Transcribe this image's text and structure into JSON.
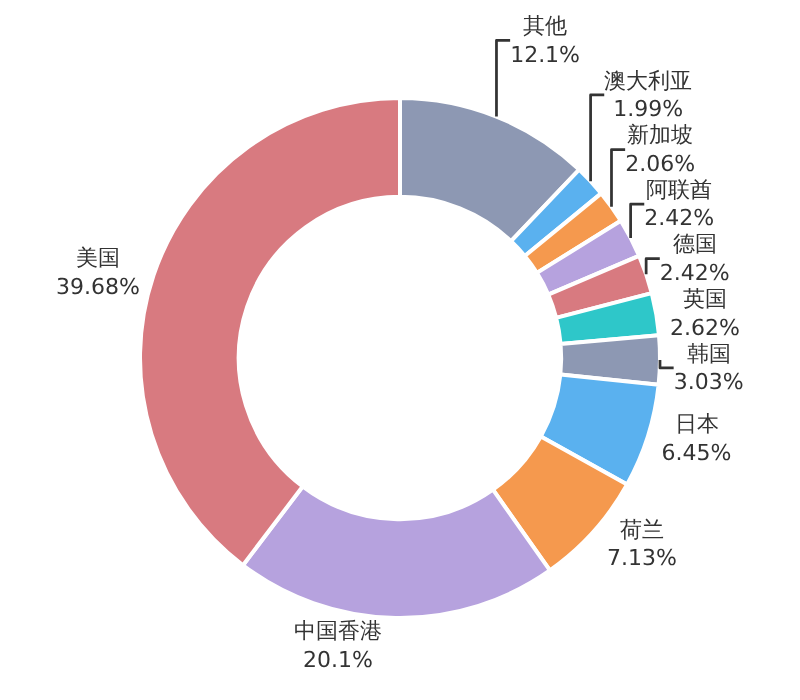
{
  "chart_data": {
    "type": "donut",
    "categories": [
      "其他",
      "澳大利亚",
      "新加坡",
      "阿联酋",
      "德国",
      "英国",
      "韩国",
      "日本",
      "荷兰",
      "中国香港",
      "美国"
    ],
    "values": [
      12.1,
      1.99,
      2.06,
      2.42,
      2.42,
      2.62,
      3.03,
      6.45,
      7.13,
      20.1,
      39.68
    ],
    "value_labels": [
      "12.1%",
      "1.99%",
      "2.06%",
      "2.42%",
      "2.42%",
      "2.62%",
      "3.03%",
      "6.45%",
      "7.13%",
      "20.1%",
      "39.68%"
    ],
    "colors": [
      "#8d98b3",
      "#5ab1ef",
      "#f5994e",
      "#b6a2de",
      "#d87a80",
      "#2ec7c9",
      "#8d98b3",
      "#5ab1ef",
      "#f5994e",
      "#b6a2de",
      "#d87a80"
    ],
    "legend": false
  }
}
